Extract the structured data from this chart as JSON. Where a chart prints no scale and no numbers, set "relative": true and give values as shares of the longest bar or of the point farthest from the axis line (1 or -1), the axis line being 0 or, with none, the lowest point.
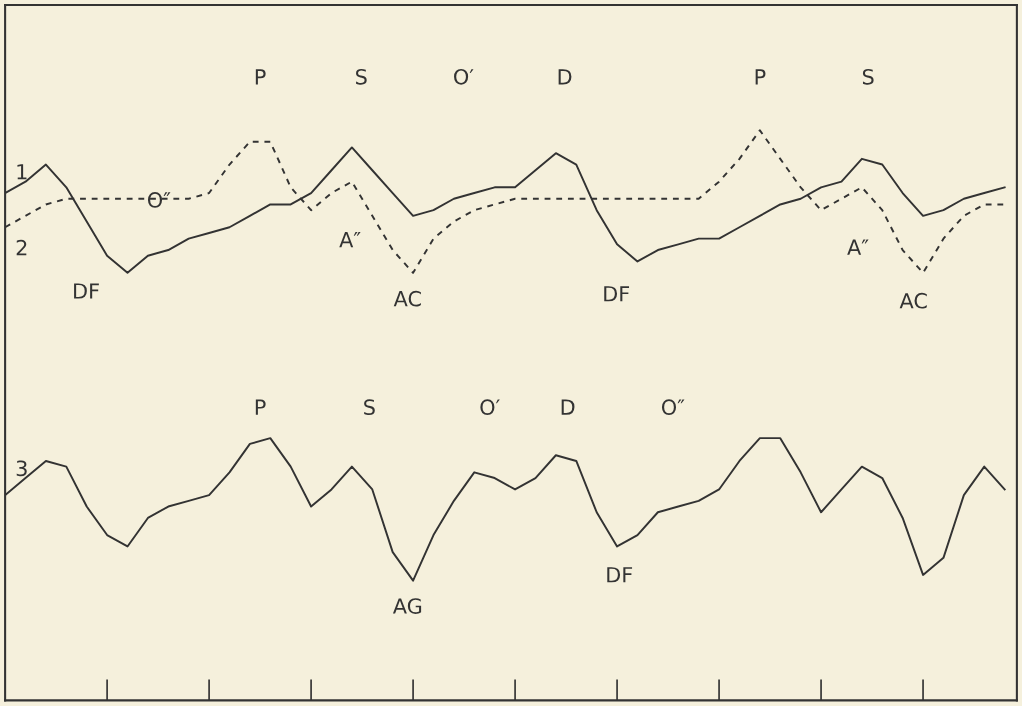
{
  "chart_data": {
    "type": "line",
    "relative": true,
    "categories": [
      null,
      null,
      null,
      null,
      null,
      null,
      null,
      null,
      null,
      null,
      null,
      null,
      null,
      null,
      null,
      null,
      null,
      null,
      null,
      null,
      null,
      null,
      null,
      null,
      null,
      null,
      null,
      null,
      null,
      null,
      null,
      null,
      null,
      null,
      null,
      null,
      null,
      null,
      null,
      null,
      null,
      null,
      null,
      null,
      null,
      null,
      null,
      null,
      null,
      null
    ],
    "marker": "none",
    "series": [
      {
        "name": "1",
        "color": "#333333",
        "line_style": "solid",
        "values": [
          0.89,
          0.91,
          0.94,
          0.9,
          0.84,
          0.78,
          0.75,
          0.78,
          0.79,
          0.81,
          0.82,
          0.83,
          0.85,
          0.87,
          0.87,
          0.89,
          0.93,
          0.97,
          0.93,
          0.89,
          0.85,
          0.86,
          0.88,
          0.89,
          0.9,
          0.9,
          0.93,
          0.96,
          0.94,
          0.86,
          0.8,
          0.77,
          0.79,
          0.8,
          0.81,
          0.81,
          0.83,
          0.85,
          0.87,
          0.88,
          0.9,
          0.91,
          0.95,
          0.94,
          0.89,
          0.85,
          0.86,
          0.88,
          0.89,
          0.9
        ]
      },
      {
        "name": "2",
        "color": "#333333",
        "line_style": "dashed",
        "values": [
          0.83,
          0.85,
          0.87,
          0.88,
          0.88,
          0.88,
          0.88,
          0.88,
          0.88,
          0.88,
          0.89,
          0.94,
          0.98,
          0.98,
          0.9,
          0.86,
          0.89,
          0.91,
          0.85,
          0.79,
          0.75,
          0.81,
          0.84,
          0.86,
          0.87,
          0.88,
          0.88,
          0.88,
          0.88,
          0.88,
          0.88,
          0.88,
          0.88,
          0.88,
          0.88,
          0.91,
          0.95,
          1.0,
          0.95,
          0.9,
          0.86,
          0.88,
          0.9,
          0.86,
          0.79,
          0.75,
          0.81,
          0.85,
          0.87,
          0.87
        ]
      },
      {
        "name": "3",
        "color": "#333333",
        "line_style": "solid",
        "values": [
          0.36,
          0.39,
          0.42,
          0.41,
          0.34,
          0.29,
          0.27,
          0.32,
          0.34,
          0.35,
          0.36,
          0.4,
          0.45,
          0.46,
          0.41,
          0.34,
          0.37,
          0.41,
          0.37,
          0.26,
          0.21,
          0.29,
          0.35,
          0.4,
          0.39,
          0.37,
          0.39,
          0.43,
          0.42,
          0.33,
          0.27,
          0.29,
          0.33,
          0.34,
          0.35,
          0.37,
          0.42,
          0.46,
          0.46,
          0.4,
          0.33,
          0.37,
          0.41,
          0.39,
          0.32,
          0.22,
          0.25,
          0.36,
          0.41,
          0.37
        ]
      }
    ],
    "annotations": [
      "P",
      "S",
      "O′",
      "D",
      "P",
      "S",
      "O″",
      "DF",
      "A″",
      "AC",
      "DF",
      "A″",
      "AC",
      "P",
      "S",
      "O′",
      "D",
      "O″",
      "AG",
      "DF"
    ]
  }
}
